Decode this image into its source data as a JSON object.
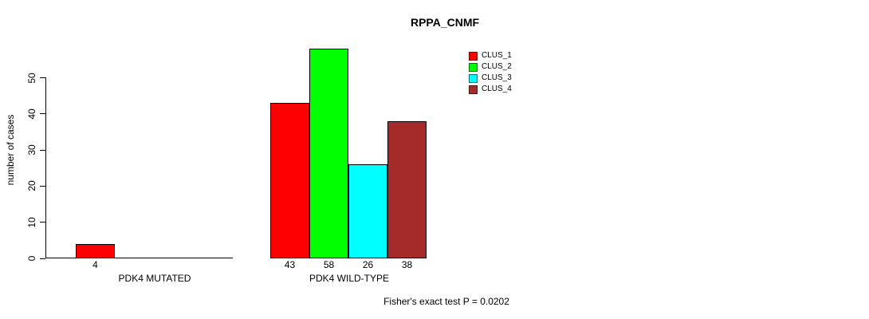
{
  "chart_data": {
    "type": "bar",
    "title": "RPPA_CNMF",
    "xlabel": "",
    "ylabel": "number of cases",
    "yticks": [
      0,
      10,
      20,
      30,
      40,
      50
    ],
    "ylim": [
      0,
      58
    ],
    "grid": false,
    "legend_position": "top-right",
    "bar_border_color": "#000000",
    "groups": [
      {
        "label": "PDK4 MUTATED",
        "bars": [
          {
            "cluster": "CLUS_1",
            "value": 4,
            "color": "#ff0000"
          }
        ]
      },
      {
        "label": "PDK4 WILD-TYPE",
        "bars": [
          {
            "cluster": "CLUS_1",
            "value": 43,
            "color": "#ff0000"
          },
          {
            "cluster": "CLUS_2",
            "value": 58,
            "color": "#00ff00"
          },
          {
            "cluster": "CLUS_3",
            "value": 26,
            "color": "#00ffff"
          },
          {
            "cluster": "CLUS_4",
            "value": 38,
            "color": "#a52a2a"
          }
        ]
      }
    ],
    "legend": [
      {
        "label": "CLUS_1",
        "color": "#ff0000"
      },
      {
        "label": "CLUS_2",
        "color": "#00ff00"
      },
      {
        "label": "CLUS_3",
        "color": "#00ffff"
      },
      {
        "label": "CLUS_4",
        "color": "#a52a2a"
      }
    ],
    "annotation": "Fisher's exact test P = 0.0202"
  }
}
